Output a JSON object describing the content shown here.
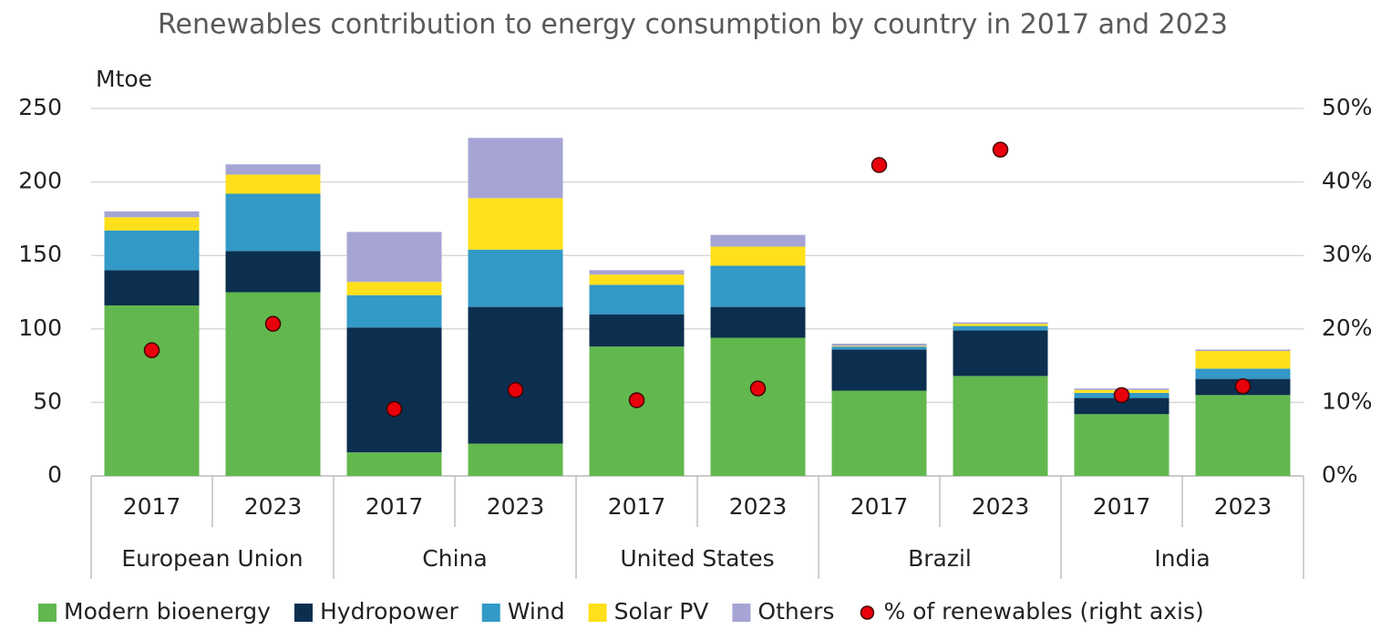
{
  "chart_data": {
    "type": "bar",
    "stacked": true,
    "title": "Renewables contribution to energy consumption by country in 2017 and 2023",
    "y_label": "Mtoe",
    "categories": [
      "2017",
      "2023",
      "2017",
      "2023",
      "2017",
      "2023",
      "2017",
      "2023",
      "2017",
      "2023"
    ],
    "groups": [
      "European Union",
      "China",
      "United States",
      "Brazil",
      "India"
    ],
    "series": [
      {
        "name": "Modern bioenergy",
        "color": "#62b84e",
        "values": [
          116,
          125,
          16,
          22,
          88,
          94,
          58,
          68,
          42,
          55
        ]
      },
      {
        "name": "Hydropower",
        "color": "#0c2f4f",
        "values": [
          24,
          28,
          85,
          93,
          22,
          21,
          28,
          31,
          11,
          11
        ]
      },
      {
        "name": "Wind",
        "color": "#3399c6",
        "values": [
          27,
          39,
          22,
          39,
          20,
          28,
          2,
          3,
          3.5,
          7
        ]
      },
      {
        "name": "Solar PV",
        "color": "#ffe01a",
        "values": [
          9,
          13,
          9,
          35,
          7,
          13,
          0.5,
          1.5,
          2,
          12
        ]
      },
      {
        "name": "Others",
        "color": "#a6a4d4",
        "values": [
          4,
          7,
          34,
          41,
          3,
          8,
          1.5,
          1,
          1,
          1
        ]
      },
      {
        "name": "% of renewables (right axis)",
        "type": "scatter",
        "axis": "y2",
        "color": "#e8000b",
        "values": [
          17.1,
          20.7,
          9.1,
          11.7,
          10.3,
          11.9,
          42.3,
          44.4,
          11,
          12.2
        ]
      }
    ],
    "ylim": [
      0,
      250
    ],
    "yticks": [
      0,
      50,
      100,
      150,
      200,
      250
    ],
    "y2lim": [
      0,
      50
    ],
    "y2ticks": [
      {
        "value": 0,
        "label": "0%"
      },
      {
        "value": 10,
        "label": "10%"
      },
      {
        "value": 20,
        "label": "20%"
      },
      {
        "value": 30,
        "label": "30%"
      },
      {
        "value": 40,
        "label": "40%"
      },
      {
        "value": 50,
        "label": "50%"
      }
    ],
    "grid": true,
    "legend": "bottom"
  }
}
